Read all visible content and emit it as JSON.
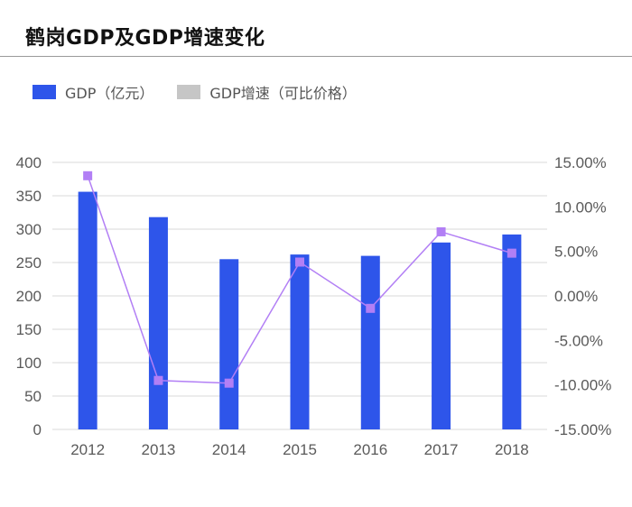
{
  "title": "鹤岗GDP及GDP增速变化",
  "colors": {
    "bar": "#2e55ea",
    "line": "#b27ff5",
    "marker": "#b27ff5",
    "legend_growth": "#c6c6c6",
    "grid": "#d9d9d9"
  },
  "legend": [
    {
      "label": "GDP（亿元）",
      "color_key": "bar"
    },
    {
      "label": "GDP增速（可比价格）",
      "color_key": "legend_growth"
    }
  ],
  "chart_data": {
    "type": "bar",
    "categories": [
      "2012",
      "2013",
      "2014",
      "2015",
      "2016",
      "2017",
      "2018"
    ],
    "series": [
      {
        "name": "GDP（亿元）",
        "type": "bar",
        "axis": "left",
        "values": [
          356,
          318,
          255,
          262,
          260,
          280,
          292
        ]
      },
      {
        "name": "GDP增速（可比价格）",
        "type": "line",
        "axis": "right",
        "values": [
          13.5,
          -9.5,
          -9.8,
          3.8,
          -1.4,
          7.2,
          4.8
        ]
      }
    ],
    "y_left": {
      "min": 0,
      "max": 400,
      "ticks": [
        "0",
        "50",
        "100",
        "150",
        "200",
        "250",
        "300",
        "350",
        "400"
      ]
    },
    "y_right": {
      "min": -15,
      "max": 15,
      "ticks": [
        "-15.00%",
        "-10.00%",
        "-5.00%",
        "0.00%",
        "5.00%",
        "10.00%",
        "15.00%"
      ]
    },
    "grid": true,
    "legend_position": "top-left"
  }
}
